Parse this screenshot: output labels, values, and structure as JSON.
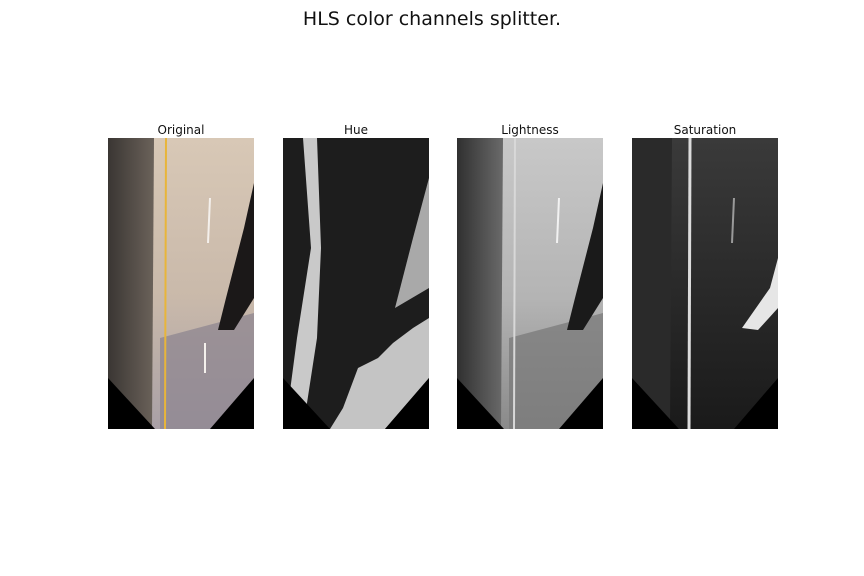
{
  "figure": {
    "title": "HLS color channels splitter."
  },
  "panels": [
    {
      "label": "Original"
    },
    {
      "label": "Hue"
    },
    {
      "label": "Lightness"
    },
    {
      "label": "Saturation"
    }
  ],
  "colors": {
    "background": "#ffffff",
    "text": "#111111",
    "mask": "#000000",
    "lane_line": "#e8b53a"
  }
}
